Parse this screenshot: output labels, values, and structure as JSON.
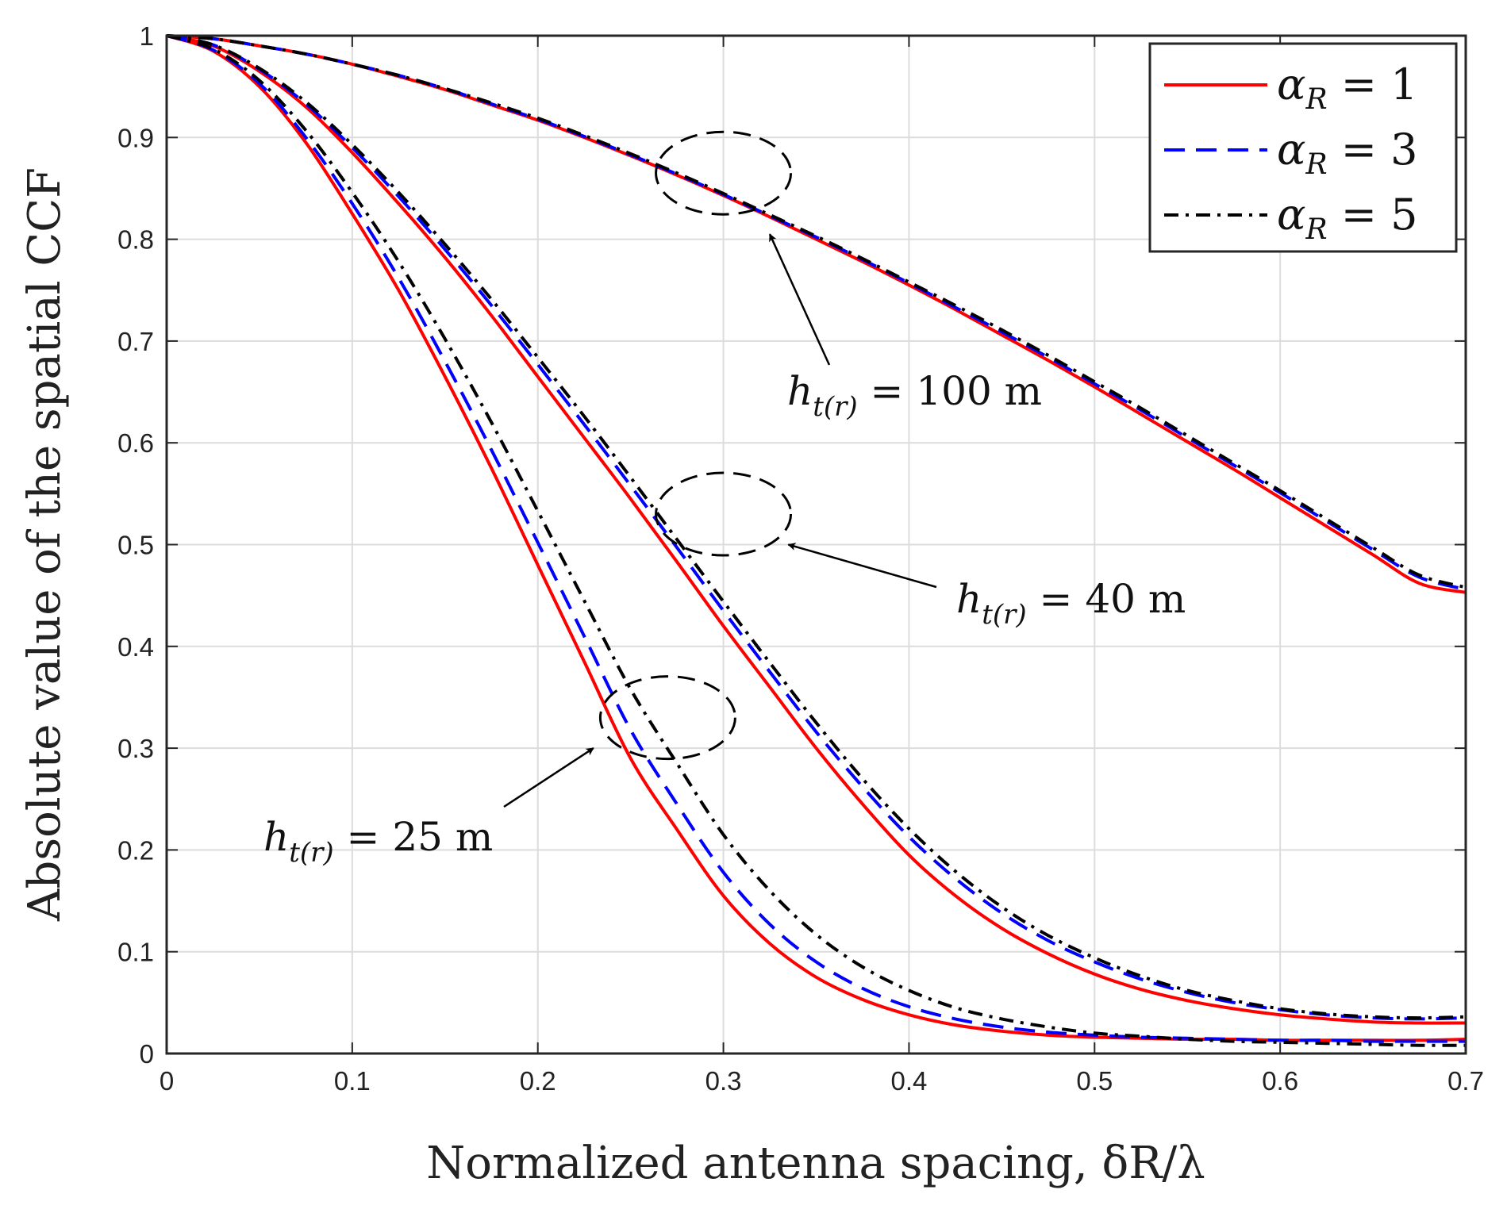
{
  "chart_data": {
    "type": "line",
    "title": "",
    "xlabel": "Normalized antenna spacing, δR/λ",
    "ylabel": "Absolute value of the spatial CCF",
    "xlim": [
      0,
      0.7
    ],
    "ylim": [
      0,
      1
    ],
    "grid": true,
    "legend_position": "top-right",
    "x_ticks": [
      "0",
      "0.1",
      "0.2",
      "0.3",
      "0.4",
      "0.5",
      "0.6",
      "0.7"
    ],
    "y_ticks": [
      "0",
      "0.1",
      "0.2",
      "0.3",
      "0.4",
      "0.5",
      "0.6",
      "0.7",
      "0.8",
      "0.9",
      "1"
    ],
    "x_tick_values": [
      0,
      0.1,
      0.2,
      0.3,
      0.4,
      0.5,
      0.6,
      0.7
    ],
    "y_tick_values": [
      0,
      0.1,
      0.2,
      0.3,
      0.4,
      0.5,
      0.6,
      0.7,
      0.8,
      0.9,
      1
    ],
    "legend": [
      {
        "label": "αR = 1",
        "color": "#ff0000",
        "dash": "solid"
      },
      {
        "label": "αR = 3",
        "color": "#0000ff",
        "dash": "dashed"
      },
      {
        "label": "αR = 5",
        "color": "#000000",
        "dash": "dashdot"
      }
    ],
    "x": [
      0,
      0.025,
      0.05,
      0.075,
      0.1,
      0.125,
      0.15,
      0.175,
      0.2,
      0.225,
      0.25,
      0.275,
      0.3,
      0.325,
      0.35,
      0.375,
      0.4,
      0.425,
      0.45,
      0.475,
      0.5,
      0.525,
      0.55,
      0.575,
      0.6,
      0.625,
      0.65,
      0.675,
      0.7
    ],
    "series": [
      {
        "name": "h=100 m, αR=1",
        "group": "100",
        "color": "#ff0000",
        "dash": "solid",
        "values": [
          1.0,
          0.997,
          0.99,
          0.982,
          0.972,
          0.96,
          0.947,
          0.932,
          0.917,
          0.9,
          0.882,
          0.863,
          0.843,
          0.822,
          0.8,
          0.778,
          0.755,
          0.731,
          0.706,
          0.681,
          0.655,
          0.628,
          0.601,
          0.574,
          0.546,
          0.518,
          0.49,
          0.462,
          0.453
        ]
      },
      {
        "name": "h=100 m, αR=3",
        "group": "100",
        "color": "#0000ff",
        "dash": "dashed",
        "values": [
          1.0,
          0.997,
          0.99,
          0.982,
          0.972,
          0.961,
          0.948,
          0.933,
          0.918,
          0.901,
          0.883,
          0.864,
          0.844,
          0.823,
          0.802,
          0.78,
          0.757,
          0.733,
          0.709,
          0.684,
          0.658,
          0.632,
          0.605,
          0.578,
          0.551,
          0.523,
          0.495,
          0.468,
          0.456
        ]
      },
      {
        "name": "h=100 m, αR=5",
        "group": "100",
        "color": "#000000",
        "dash": "dashdot",
        "values": [
          1.0,
          0.997,
          0.99,
          0.982,
          0.972,
          0.961,
          0.948,
          0.934,
          0.919,
          0.902,
          0.884,
          0.865,
          0.845,
          0.824,
          0.803,
          0.781,
          0.758,
          0.735,
          0.711,
          0.686,
          0.66,
          0.634,
          0.607,
          0.58,
          0.553,
          0.525,
          0.497,
          0.47,
          0.458
        ]
      },
      {
        "name": "h=40 m, αR=1",
        "group": "40",
        "color": "#ff0000",
        "dash": "solid",
        "values": [
          1.0,
          0.99,
          0.965,
          0.93,
          0.885,
          0.835,
          0.782,
          0.725,
          0.665,
          0.605,
          0.545,
          0.483,
          0.42,
          0.36,
          0.3,
          0.245,
          0.195,
          0.155,
          0.123,
          0.098,
          0.078,
          0.063,
          0.052,
          0.044,
          0.038,
          0.034,
          0.031,
          0.03,
          0.03
        ]
      },
      {
        "name": "h=40 m, αR=3",
        "group": "40",
        "color": "#0000ff",
        "dash": "dashed",
        "values": [
          1.0,
          0.991,
          0.967,
          0.933,
          0.89,
          0.842,
          0.79,
          0.735,
          0.677,
          0.618,
          0.558,
          0.497,
          0.435,
          0.375,
          0.316,
          0.262,
          0.213,
          0.172,
          0.138,
          0.111,
          0.09,
          0.073,
          0.06,
          0.05,
          0.043,
          0.038,
          0.035,
          0.034,
          0.035
        ]
      },
      {
        "name": "h=40 m, αR=5",
        "group": "40",
        "color": "#000000",
        "dash": "dashdot",
        "values": [
          1.0,
          0.991,
          0.968,
          0.935,
          0.893,
          0.846,
          0.795,
          0.741,
          0.684,
          0.626,
          0.566,
          0.505,
          0.444,
          0.384,
          0.325,
          0.27,
          0.221,
          0.179,
          0.144,
          0.116,
          0.094,
          0.076,
          0.062,
          0.052,
          0.044,
          0.039,
          0.036,
          0.035,
          0.036
        ]
      },
      {
        "name": "h=25 m, αR=1",
        "group": "25",
        "color": "#ff0000",
        "dash": "solid",
        "values": [
          1.0,
          0.985,
          0.95,
          0.895,
          0.825,
          0.75,
          0.665,
          0.575,
          0.48,
          0.385,
          0.29,
          0.22,
          0.155,
          0.108,
          0.075,
          0.053,
          0.038,
          0.028,
          0.022,
          0.018,
          0.016,
          0.015,
          0.014,
          0.014,
          0.013,
          0.013,
          0.013,
          0.013,
          0.014
        ]
      },
      {
        "name": "h=25 m, αR=3",
        "group": "25",
        "color": "#0000ff",
        "dash": "dashed",
        "values": [
          1.0,
          0.986,
          0.953,
          0.9,
          0.835,
          0.762,
          0.68,
          0.593,
          0.502,
          0.41,
          0.318,
          0.245,
          0.178,
          0.127,
          0.09,
          0.064,
          0.046,
          0.034,
          0.026,
          0.021,
          0.018,
          0.016,
          0.015,
          0.014,
          0.013,
          0.013,
          0.012,
          0.012,
          0.012
        ]
      },
      {
        "name": "h=25 m, αR=5",
        "group": "25",
        "color": "#000000",
        "dash": "dashdot",
        "values": [
          1.0,
          0.987,
          0.956,
          0.907,
          0.846,
          0.778,
          0.702,
          0.62,
          0.533,
          0.445,
          0.358,
          0.285,
          0.215,
          0.16,
          0.117,
          0.085,
          0.062,
          0.045,
          0.034,
          0.026,
          0.02,
          0.017,
          0.014,
          0.012,
          0.011,
          0.01,
          0.009,
          0.008,
          0.008
        ]
      }
    ],
    "annotations": [
      {
        "id": "100",
        "prefix": "h",
        "subscript": "t(r)",
        "text": " = 100 m",
        "ellipse_center": [
          0.3,
          0.865
        ],
        "arrow_tip": [
          0.325,
          0.805
        ]
      },
      {
        "id": "40",
        "prefix": "h",
        "subscript": "t(r)",
        "text": " = 40 m",
        "ellipse_center": [
          0.3,
          0.53
        ],
        "arrow_tip": [
          0.335,
          0.5
        ]
      },
      {
        "id": "25",
        "prefix": "h",
        "subscript": "t(r)",
        "text": " = 25 m",
        "ellipse_center": [
          0.27,
          0.33
        ],
        "arrow_tip": [
          0.23,
          0.3
        ]
      }
    ]
  }
}
